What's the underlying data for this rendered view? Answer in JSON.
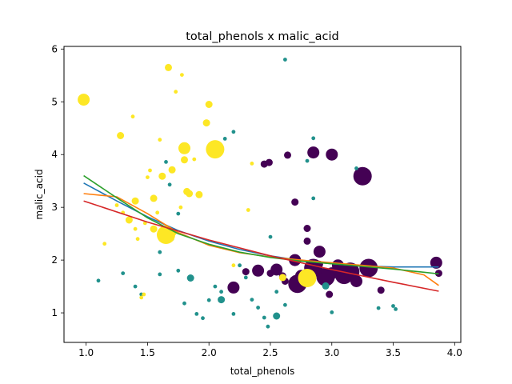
{
  "chart_data": {
    "type": "scatter",
    "title": "total_phenols x malic_acid",
    "xlabel": "total_phenols",
    "ylabel": "malic_acid",
    "xlim": [
      0.82,
      4.05
    ],
    "ylim": [
      0.44,
      6.05
    ],
    "xticks": [
      1.0,
      1.5,
      2.0,
      2.5,
      3.0,
      3.5,
      4.0
    ],
    "xtick_labels": [
      "1.0",
      "1.5",
      "2.0",
      "2.5",
      "3.0",
      "3.5",
      "4.0"
    ],
    "yticks": [
      1,
      2,
      3,
      4,
      5,
      6
    ],
    "ytick_labels": [
      "1",
      "2",
      "3",
      "4",
      "5",
      "6"
    ],
    "grid": false,
    "legend": "none",
    "classes": [
      {
        "color": "#440154",
        "points": [
          [
            2.2,
            1.48,
            2
          ],
          [
            2.45,
            3.82,
            1
          ],
          [
            2.49,
            3.85,
            1
          ],
          [
            2.64,
            3.99,
            1
          ],
          [
            2.7,
            3.1,
            1
          ],
          [
            2.8,
            2.36,
            1
          ],
          [
            2.8,
            2.6,
            1
          ],
          [
            2.85,
            4.04,
            2
          ],
          [
            2.9,
            2.16,
            2
          ],
          [
            2.95,
            1.68,
            3
          ],
          [
            3.0,
            4.0,
            2
          ],
          [
            3.25,
            3.59,
            3
          ],
          [
            3.3,
            1.85,
            3
          ],
          [
            2.4,
            1.8,
            2
          ],
          [
            2.55,
            1.82,
            2
          ],
          [
            2.62,
            1.6,
            1
          ],
          [
            2.7,
            2.0,
            2
          ],
          [
            2.75,
            1.7,
            2
          ],
          [
            2.85,
            1.85,
            3
          ],
          [
            2.9,
            1.92,
            1
          ],
          [
            3.0,
            1.75,
            2
          ],
          [
            3.05,
            1.9,
            2
          ],
          [
            3.1,
            1.72,
            3
          ],
          [
            3.15,
            1.78,
            3
          ],
          [
            3.2,
            1.6,
            2
          ],
          [
            3.4,
            1.43,
            1
          ],
          [
            3.85,
            1.95,
            2
          ],
          [
            3.87,
            1.75,
            1
          ],
          [
            2.72,
            1.55,
            3
          ],
          [
            2.6,
            1.7,
            1
          ],
          [
            2.98,
            1.35,
            1
          ],
          [
            2.3,
            1.78,
            1
          ],
          [
            2.5,
            1.75,
            1
          ]
        ]
      },
      {
        "color": "#21918c",
        "points": [
          [
            1.1,
            1.61,
            0
          ],
          [
            1.6,
            1.73,
            0
          ],
          [
            1.65,
            3.86,
            0
          ],
          [
            1.68,
            3.43,
            0
          ],
          [
            1.75,
            2.88,
            0
          ],
          [
            1.85,
            1.66,
            1
          ],
          [
            1.95,
            0.9,
            0
          ],
          [
            2.0,
            1.24,
            0
          ],
          [
            2.1,
            1.25,
            1
          ],
          [
            2.2,
            4.43,
            0
          ],
          [
            2.13,
            4.3,
            0
          ],
          [
            2.2,
            0.98,
            0
          ],
          [
            2.3,
            1.67,
            0
          ],
          [
            2.5,
            2.44,
            0
          ],
          [
            2.55,
            0.94,
            1
          ],
          [
            2.62,
            5.8,
            0
          ],
          [
            2.8,
            3.88,
            0
          ],
          [
            2.85,
            4.31,
            0
          ],
          [
            2.85,
            3.17,
            0
          ],
          [
            2.95,
            1.51,
            1
          ],
          [
            3.0,
            1.01,
            0
          ],
          [
            3.5,
            1.13,
            0
          ],
          [
            3.52,
            1.07,
            0
          ],
          [
            3.2,
            3.74,
            0
          ],
          [
            1.4,
            1.5,
            0
          ],
          [
            1.45,
            1.35,
            0
          ],
          [
            1.3,
            1.75,
            0
          ],
          [
            1.6,
            2.15,
            0
          ],
          [
            1.7,
            2.4,
            0
          ],
          [
            1.75,
            1.8,
            0
          ],
          [
            1.8,
            1.18,
            0
          ],
          [
            1.9,
            0.98,
            0
          ],
          [
            2.05,
            1.5,
            0
          ],
          [
            2.1,
            1.4,
            0
          ],
          [
            2.25,
            1.9,
            0
          ],
          [
            2.35,
            1.25,
            0
          ],
          [
            2.4,
            1.1,
            0
          ],
          [
            2.45,
            0.91,
            0
          ],
          [
            2.55,
            1.4,
            0
          ],
          [
            2.62,
            1.15,
            0
          ],
          [
            3.38,
            1.09,
            0
          ],
          [
            2.48,
            0.74,
            0
          ]
        ]
      },
      {
        "color": "#fde725",
        "points": [
          [
            0.98,
            5.04,
            2
          ],
          [
            1.15,
            2.31,
            0
          ],
          [
            1.25,
            3.04,
            0
          ],
          [
            1.28,
            4.36,
            1
          ],
          [
            1.35,
            2.76,
            1
          ],
          [
            1.38,
            4.72,
            0
          ],
          [
            1.4,
            3.12,
            1
          ],
          [
            1.45,
            1.29,
            0
          ],
          [
            1.5,
            3.57,
            0
          ],
          [
            1.52,
            3.7,
            0
          ],
          [
            1.55,
            3.17,
            1
          ],
          [
            1.55,
            2.59,
            1
          ],
          [
            1.6,
            4.28,
            0
          ],
          [
            1.62,
            3.59,
            1
          ],
          [
            1.65,
            2.48,
            3
          ],
          [
            1.67,
            5.65,
            1
          ],
          [
            1.7,
            3.71,
            1
          ],
          [
            1.72,
            2.51,
            0
          ],
          [
            1.73,
            5.19,
            0
          ],
          [
            1.78,
            5.51,
            0
          ],
          [
            1.8,
            4.12,
            2
          ],
          [
            1.82,
            3.3,
            1
          ],
          [
            1.84,
            3.26,
            1
          ],
          [
            1.88,
            3.91,
            0
          ],
          [
            1.92,
            3.24,
            1
          ],
          [
            1.98,
            4.6,
            1
          ],
          [
            2.0,
            4.95,
            1
          ],
          [
            2.05,
            4.1,
            3
          ],
          [
            2.2,
            1.9,
            0
          ],
          [
            2.35,
            3.83,
            0
          ],
          [
            2.6,
            1.67,
            1
          ],
          [
            2.8,
            1.66,
            3
          ],
          [
            1.42,
            2.4,
            0
          ],
          [
            1.48,
            2.7,
            0
          ],
          [
            1.58,
            2.9,
            0
          ],
          [
            1.77,
            3.0,
            0
          ],
          [
            1.8,
            3.9,
            1
          ],
          [
            2.32,
            2.95,
            0
          ],
          [
            1.3,
            2.9,
            0
          ],
          [
            1.47,
            1.35,
            0
          ],
          [
            1.4,
            2.59,
            0
          ]
        ]
      }
    ],
    "fit_lines": [
      {
        "color": "#1f77b4",
        "x": [
          0.98,
          1.25,
          1.5,
          1.75,
          2.0,
          2.25,
          2.5,
          2.75,
          3.0,
          3.25,
          3.5,
          3.75,
          3.87
        ],
        "y": [
          3.46,
          3.12,
          2.82,
          2.56,
          2.36,
          2.2,
          2.08,
          1.99,
          1.93,
          1.89,
          1.87,
          1.87,
          1.87
        ]
      },
      {
        "color": "#ff7f0e",
        "x": [
          0.98,
          1.25,
          1.5,
          1.75,
          2.0,
          2.25,
          2.5,
          2.75,
          3.0,
          3.25,
          3.5,
          3.75,
          3.87
        ],
        "y": [
          3.26,
          3.2,
          2.88,
          2.52,
          2.28,
          2.14,
          2.06,
          2.0,
          1.95,
          1.9,
          1.85,
          1.72,
          1.52
        ]
      },
      {
        "color": "#2ca02c",
        "x": [
          0.98,
          1.25,
          1.5,
          1.75,
          2.0,
          2.25,
          2.5,
          2.75,
          3.0,
          3.25,
          3.5,
          3.75,
          3.87
        ],
        "y": [
          3.6,
          3.18,
          2.8,
          2.5,
          2.3,
          2.15,
          2.05,
          1.98,
          1.93,
          1.88,
          1.83,
          1.77,
          1.74
        ]
      },
      {
        "color": "#d62728",
        "x": [
          0.98,
          1.5,
          2.0,
          2.5,
          3.0,
          3.5,
          3.87
        ],
        "y": [
          3.12,
          2.72,
          2.38,
          2.08,
          1.82,
          1.58,
          1.41
        ]
      }
    ]
  }
}
